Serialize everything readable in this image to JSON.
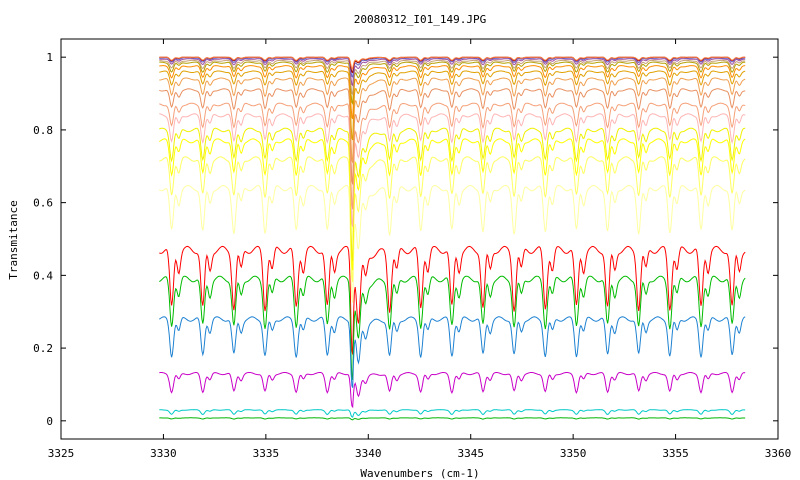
{
  "chart_data": {
    "type": "line",
    "title": "20080312_I01_149.JPG",
    "xlabel": "Wavenumbers (cm-1)",
    "ylabel": "Transmitance",
    "xlim": [
      3325,
      3360
    ],
    "ylim": [
      -0.05,
      1.05
    ],
    "x_ticks": [
      3325,
      3330,
      3335,
      3340,
      3345,
      3350,
      3355,
      3360
    ],
    "x_tick_labels": [
      "3325",
      "3330",
      "3335",
      "3340",
      "3345",
      "3350",
      "3355",
      "3360"
    ],
    "y_ticks": [
      0,
      0.2,
      0.4,
      0.6,
      0.8,
      1
    ],
    "y_tick_labels": [
      "0",
      "0.2",
      "0.4",
      "0.6",
      "0.8",
      "1"
    ],
    "grid": false,
    "legend": "none",
    "x_range": [
      3329.8,
      3358.4
    ],
    "line_spacing_cm1": 1.52,
    "first_line_cm1": 3330.4,
    "deep_dip_cm1": 3339.2,
    "series": [
      {
        "color": "#ff0000",
        "baseline": 0.47,
        "dip_depth": 0.16,
        "deep_dip": 0.27
      },
      {
        "color": "#00bb00",
        "baseline": 0.39,
        "dip_depth": 0.13,
        "deep_dip": 0.26
      },
      {
        "color": "#1e82d2",
        "baseline": 0.28,
        "dip_depth": 0.1,
        "deep_dip": 0.18
      },
      {
        "color": "#c800c8",
        "baseline": 0.13,
        "dip_depth": 0.05,
        "deep_dip": 0.09
      },
      {
        "color": "#00c8c8",
        "baseline": 0.03,
        "dip_depth": 0.012,
        "deep_dip": 0.02
      },
      {
        "color": "#00b400",
        "baseline": 0.008,
        "dip_depth": 0.003,
        "deep_dip": 0.005
      },
      {
        "color": "#ffffa0",
        "baseline": 0.64,
        "dip_depth": 0.12,
        "deep_dip": 0.3
      },
      {
        "color": "#ffff60",
        "baseline": 0.72,
        "dip_depth": 0.1,
        "deep_dip": 0.32
      },
      {
        "color": "#ffff00",
        "baseline": 0.77,
        "dip_depth": 0.09,
        "deep_dip": 0.34
      },
      {
        "color": "#f0f000",
        "baseline": 0.8,
        "dip_depth": 0.08,
        "deep_dip": 0.35
      },
      {
        "color": "#ffb4b4",
        "baseline": 0.84,
        "dip_depth": 0.07,
        "deep_dip": 0.3
      },
      {
        "color": "#f5a078",
        "baseline": 0.87,
        "dip_depth": 0.06,
        "deep_dip": 0.28
      },
      {
        "color": "#e89060",
        "baseline": 0.91,
        "dip_depth": 0.05,
        "deep_dip": 0.25
      },
      {
        "color": "#f0a050",
        "baseline": 0.94,
        "dip_depth": 0.045,
        "deep_dip": 0.22
      },
      {
        "color": "#e0a000",
        "baseline": 0.96,
        "dip_depth": 0.035,
        "deep_dip": 0.18
      },
      {
        "color": "#ff8c00",
        "baseline": 0.975,
        "dip_depth": 0.03,
        "deep_dip": 0.14
      },
      {
        "color": "#b4a000",
        "baseline": 0.985,
        "dip_depth": 0.025,
        "deep_dip": 0.11
      },
      {
        "color": "#c8a078",
        "baseline": 0.99,
        "dip_depth": 0.02,
        "deep_dip": 0.09
      },
      {
        "color": "#a050a0",
        "baseline": 0.995,
        "dip_depth": 0.015,
        "deep_dip": 0.07
      },
      {
        "color": "#6464c8",
        "baseline": 0.998,
        "dip_depth": 0.012,
        "deep_dip": 0.05
      },
      {
        "color": "#a00000",
        "baseline": 1.0,
        "dip_depth": 0.01,
        "deep_dip": 0.04
      },
      {
        "color": "#ff8040",
        "baseline": 1.0,
        "dip_depth": 0.008,
        "deep_dip": 0.03
      }
    ]
  }
}
